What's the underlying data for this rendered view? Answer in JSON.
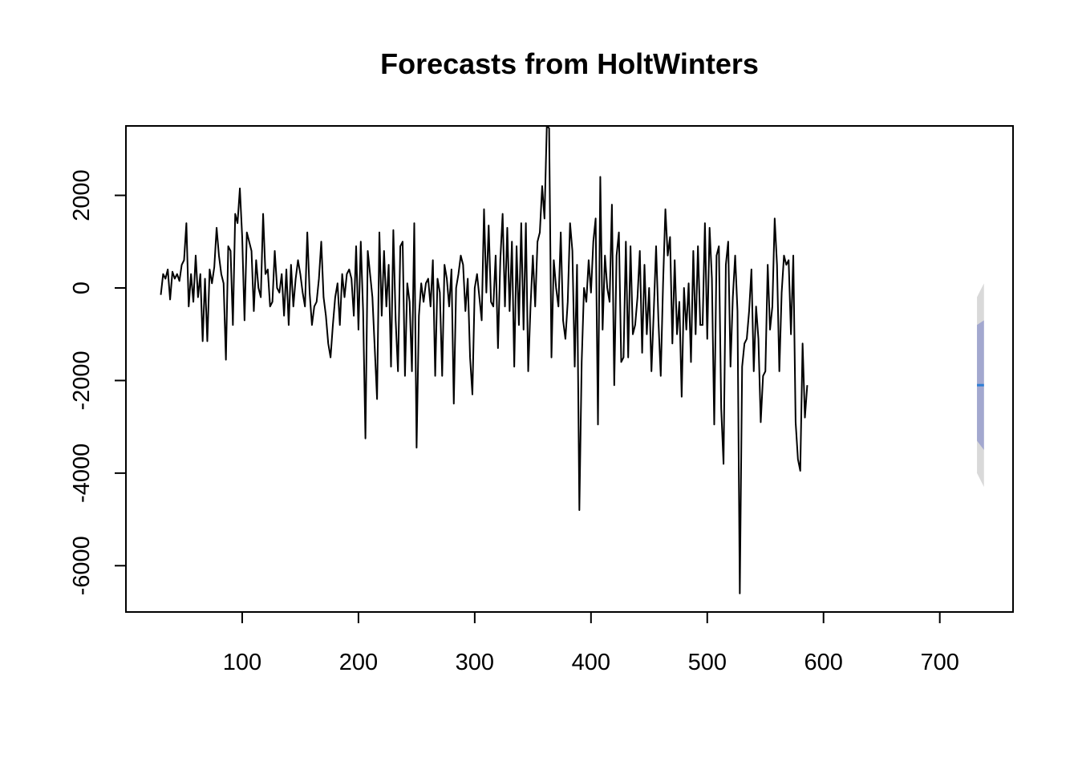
{
  "chart_data": {
    "type": "line",
    "title": "Forecasts from HoltWinters",
    "xlabel": "",
    "ylabel": "",
    "xlim": [
      0,
      763
    ],
    "ylim": [
      -7000,
      3500
    ],
    "x_ticks": [
      100,
      200,
      300,
      400,
      500,
      600,
      700
    ],
    "y_ticks": [
      -6000,
      -4000,
      -2000,
      0,
      2000
    ],
    "x_tick_labels": [
      "100",
      "200",
      "300",
      "400",
      "500",
      "600",
      "700"
    ],
    "y_tick_labels": [
      "-6000",
      "-4000",
      "-2000",
      "0",
      "2000"
    ],
    "grid": false,
    "legend": "none",
    "colors": {
      "series": "#000000",
      "forecast": "#2d7fd6",
      "band80": "#a3a8cf",
      "band95": "#d9d9d9"
    },
    "series": [
      {
        "x_start": 30,
        "x_step": 2,
        "values": [
          -150,
          300,
          200,
          400,
          -250,
          350,
          200,
          300,
          150,
          500,
          600,
          1400,
          -400,
          300,
          -300,
          700,
          -200,
          300,
          -1150,
          200,
          -1150,
          400,
          100,
          450,
          1300,
          700,
          300,
          100,
          -1550,
          900,
          800,
          -800,
          1600,
          1400,
          2150,
          1100,
          -700,
          1200,
          1000,
          800,
          -500,
          600,
          0,
          -200,
          1600,
          300,
          400,
          -400,
          -300,
          800,
          0,
          -100,
          300,
          -600,
          400,
          -800,
          500,
          -400,
          200,
          600,
          300,
          -100,
          -400,
          1200,
          -100,
          -800,
          -400,
          -300,
          200,
          1000,
          -200,
          -600,
          -1200,
          -1500,
          -800,
          -200,
          100,
          -800,
          300,
          -200,
          300,
          400,
          200,
          -600,
          900,
          -900,
          1000,
          -500,
          -3250,
          800,
          300,
          -200,
          -1300,
          -2400,
          1200,
          -600,
          800,
          -400,
          500,
          -1700,
          1250,
          -700,
          -1800,
          900,
          1000,
          -1900,
          100,
          -300,
          -1800,
          1400,
          -3450,
          -600,
          100,
          -300,
          100,
          200,
          -400,
          600,
          -1900,
          200,
          -100,
          -1900,
          500,
          200,
          -400,
          400,
          -2500,
          0,
          300,
          700,
          500,
          -500,
          200,
          -1500,
          -2300,
          0,
          300,
          -200,
          -700,
          1700,
          -100,
          1350,
          -300,
          -400,
          700,
          -1300,
          600,
          1600,
          -400,
          1300,
          -500,
          1000,
          -1700,
          900,
          -800,
          1400,
          -900,
          1400,
          -1800,
          -400,
          700,
          -400,
          1000,
          1200,
          2200,
          1500,
          3500,
          3450,
          -1500,
          600,
          0,
          -400,
          1200,
          -700,
          -1100,
          -300,
          1400,
          800,
          -1700,
          500,
          -4800,
          -1600,
          0,
          -300,
          600,
          -100,
          1000,
          1500,
          -2950,
          2400,
          -900,
          700,
          0,
          -300,
          1800,
          -2100,
          700,
          1200,
          -1600,
          -1500,
          1000,
          -1500,
          900,
          -1000,
          -800,
          -200,
          800,
          -1400,
          500,
          -1000,
          0,
          -1800,
          -500,
          900,
          -700,
          -1900,
          100,
          1700,
          700,
          1100,
          -1200,
          600,
          -1000,
          -300,
          -2350,
          0,
          -900,
          100,
          -1600,
          800,
          -1000,
          900,
          -800,
          -800,
          1400,
          -1100,
          1300,
          200,
          -2950,
          700,
          900,
          -2600,
          -3800,
          500,
          1000,
          -1700,
          -200,
          700,
          -500,
          -6600,
          -1700,
          -1200,
          -1100,
          -500,
          400,
          -1800,
          -400,
          -1100,
          -2900,
          -1900,
          -1800,
          500,
          -900,
          -400,
          1500,
          500,
          -1800,
          -100,
          700,
          500,
          600,
          -1000,
          700,
          -2900,
          -3700,
          -3950,
          -1200,
          -2800,
          -2100
        ]
      }
    ],
    "forecast": {
      "x": [
        732,
        738
      ],
      "mean": [
        -2100,
        -2100
      ],
      "band80": {
        "upper": [
          -800,
          -700
        ],
        "lower": [
          -3300,
          -3500
        ]
      },
      "band95": {
        "upper": [
          -200,
          100
        ],
        "lower": [
          -4000,
          -4300
        ]
      }
    }
  }
}
